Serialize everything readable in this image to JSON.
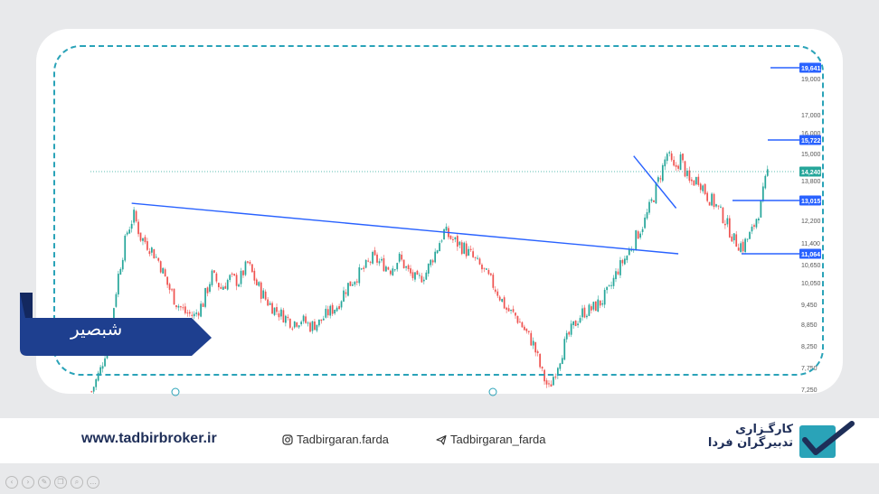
{
  "chart_data": {
    "type": "candlestick",
    "ticker_label": "شبصیر",
    "yticks": [
      "19,000",
      "17,000",
      "16,000",
      "15,000",
      "13,800",
      "12,200",
      "11,400",
      "10,650",
      "10,050",
      "9,450",
      "8,850",
      "8,250",
      "7,750",
      "7,250"
    ],
    "price_labels": [
      {
        "value": "19,641",
        "color": "#2962ff"
      },
      {
        "value": "15,722",
        "color": "#2962ff"
      },
      {
        "value": "14,240",
        "color": "#26a69a"
      },
      {
        "value": "13,015",
        "color": "#2962ff"
      },
      {
        "value": "11,064",
        "color": "#2962ff"
      }
    ],
    "current_price": 14240,
    "horizontal_levels": [
      19641,
      15722,
      13015,
      11064
    ],
    "trendlines": [
      {
        "from": {
          "bar": 18,
          "price": 12900
        },
        "to": {
          "bar": 263,
          "price": 11064
        }
      },
      {
        "from": {
          "bar": 243,
          "price": 14900
        },
        "to": {
          "bar": 262,
          "price": 12700
        }
      }
    ],
    "close_path": [
      [
        0,
        7200
      ],
      [
        4,
        7700
      ],
      [
        8,
        8500
      ],
      [
        12,
        10300
      ],
      [
        16,
        11800
      ],
      [
        19,
        12400
      ],
      [
        22,
        11600
      ],
      [
        26,
        11300
      ],
      [
        30,
        10800
      ],
      [
        34,
        10000
      ],
      [
        38,
        9500
      ],
      [
        42,
        9200
      ],
      [
        46,
        9100
      ],
      [
        50,
        9500
      ],
      [
        54,
        10300
      ],
      [
        58,
        9900
      ],
      [
        62,
        10200
      ],
      [
        66,
        10100
      ],
      [
        70,
        10700
      ],
      [
        74,
        10000
      ],
      [
        78,
        9600
      ],
      [
        82,
        9300
      ],
      [
        86,
        9100
      ],
      [
        90,
        8900
      ],
      [
        94,
        9000
      ],
      [
        98,
        8800
      ],
      [
        102,
        8900
      ],
      [
        106,
        9200
      ],
      [
        110,
        9400
      ],
      [
        114,
        9900
      ],
      [
        118,
        10200
      ],
      [
        122,
        10500
      ],
      [
        126,
        10900
      ],
      [
        130,
        10700
      ],
      [
        134,
        10500
      ],
      [
        138,
        10900
      ],
      [
        142,
        10400
      ],
      [
        146,
        10100
      ],
      [
        150,
        10400
      ],
      [
        154,
        11100
      ],
      [
        158,
        11800
      ],
      [
        162,
        11500
      ],
      [
        166,
        11300
      ],
      [
        170,
        11000
      ],
      [
        174,
        10600
      ],
      [
        178,
        10200
      ],
      [
        182,
        9800
      ],
      [
        186,
        9300
      ],
      [
        190,
        9100
      ],
      [
        194,
        8700
      ],
      [
        198,
        8300
      ],
      [
        202,
        7600
      ],
      [
        205,
        7250
      ],
      [
        208,
        7700
      ],
      [
        212,
        8300
      ],
      [
        216,
        8800
      ],
      [
        220,
        9200
      ],
      [
        224,
        9300
      ],
      [
        228,
        9500
      ],
      [
        232,
        9800
      ],
      [
        236,
        10500
      ],
      [
        240,
        11000
      ],
      [
        244,
        11600
      ],
      [
        248,
        12200
      ],
      [
        252,
        13200
      ],
      [
        256,
        14400
      ],
      [
        258,
        15000
      ],
      [
        261,
        14300
      ],
      [
        264,
        14800
      ],
      [
        268,
        13700
      ],
      [
        272,
        13900
      ],
      [
        276,
        13200
      ],
      [
        280,
        12800
      ],
      [
        284,
        12200
      ],
      [
        288,
        11500
      ],
      [
        292,
        11300
      ],
      [
        296,
        11800
      ],
      [
        300,
        12800
      ],
      [
        303,
        14240
      ]
    ],
    "bar_count": 304,
    "ylim": [
      7150,
      20000
    ]
  },
  "footer": {
    "website": "www.tadbirbroker.ir",
    "instagram": "Tadbirgaran.farda",
    "telegram": "Tadbirgaran_farda",
    "brand_line1": "کارگـزاری",
    "brand_line2": "تدبیرگران فردا",
    "instagram_icon": "instagram-icon",
    "telegram_icon": "telegram-icon",
    "logo_icon": "checkmark-logo-icon"
  },
  "colors": {
    "up": "#26a69a",
    "down": "#ef5350",
    "trendline": "#2962ff",
    "label_bg": "#1e3f8f",
    "dash": "#2aa3b8"
  }
}
